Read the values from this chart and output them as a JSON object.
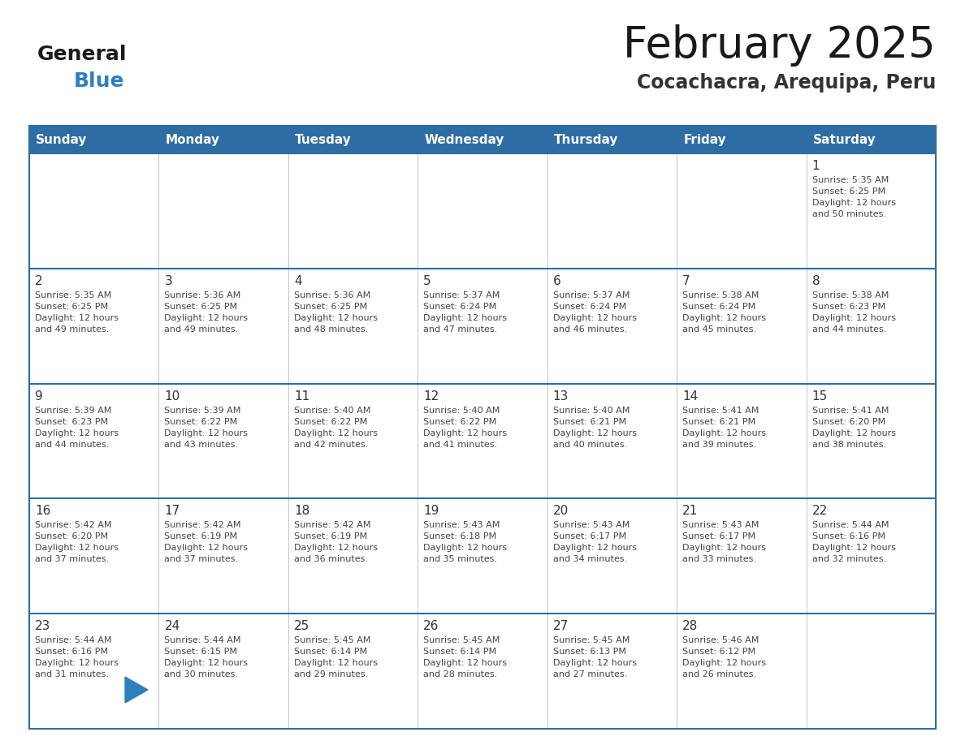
{
  "title": "February 2025",
  "subtitle": "Cocachacra, Arequipa, Peru",
  "days_of_week": [
    "Sunday",
    "Monday",
    "Tuesday",
    "Wednesday",
    "Thursday",
    "Friday",
    "Saturday"
  ],
  "header_bg_color": "#2E6DA4",
  "header_text_color": "#FFFFFF",
  "border_color": "#2E6DA4",
  "day_number_color": "#333333",
  "cell_text_color": "#444444",
  "title_color": "#1a1a1a",
  "subtitle_color": "#333333",
  "logo_general_color": "#1a1a1a",
  "logo_blue_color": "#2E7FBF",
  "logo_triangle_color": "#2E7FBF",
  "weeks": [
    [
      {
        "day": null,
        "info": null
      },
      {
        "day": null,
        "info": null
      },
      {
        "day": null,
        "info": null
      },
      {
        "day": null,
        "info": null
      },
      {
        "day": null,
        "info": null
      },
      {
        "day": null,
        "info": null
      },
      {
        "day": 1,
        "info": "Sunrise: 5:35 AM\nSunset: 6:25 PM\nDaylight: 12 hours\nand 50 minutes."
      }
    ],
    [
      {
        "day": 2,
        "info": "Sunrise: 5:35 AM\nSunset: 6:25 PM\nDaylight: 12 hours\nand 49 minutes."
      },
      {
        "day": 3,
        "info": "Sunrise: 5:36 AM\nSunset: 6:25 PM\nDaylight: 12 hours\nand 49 minutes."
      },
      {
        "day": 4,
        "info": "Sunrise: 5:36 AM\nSunset: 6:25 PM\nDaylight: 12 hours\nand 48 minutes."
      },
      {
        "day": 5,
        "info": "Sunrise: 5:37 AM\nSunset: 6:24 PM\nDaylight: 12 hours\nand 47 minutes."
      },
      {
        "day": 6,
        "info": "Sunrise: 5:37 AM\nSunset: 6:24 PM\nDaylight: 12 hours\nand 46 minutes."
      },
      {
        "day": 7,
        "info": "Sunrise: 5:38 AM\nSunset: 6:24 PM\nDaylight: 12 hours\nand 45 minutes."
      },
      {
        "day": 8,
        "info": "Sunrise: 5:38 AM\nSunset: 6:23 PM\nDaylight: 12 hours\nand 44 minutes."
      }
    ],
    [
      {
        "day": 9,
        "info": "Sunrise: 5:39 AM\nSunset: 6:23 PM\nDaylight: 12 hours\nand 44 minutes."
      },
      {
        "day": 10,
        "info": "Sunrise: 5:39 AM\nSunset: 6:22 PM\nDaylight: 12 hours\nand 43 minutes."
      },
      {
        "day": 11,
        "info": "Sunrise: 5:40 AM\nSunset: 6:22 PM\nDaylight: 12 hours\nand 42 minutes."
      },
      {
        "day": 12,
        "info": "Sunrise: 5:40 AM\nSunset: 6:22 PM\nDaylight: 12 hours\nand 41 minutes."
      },
      {
        "day": 13,
        "info": "Sunrise: 5:40 AM\nSunset: 6:21 PM\nDaylight: 12 hours\nand 40 minutes."
      },
      {
        "day": 14,
        "info": "Sunrise: 5:41 AM\nSunset: 6:21 PM\nDaylight: 12 hours\nand 39 minutes."
      },
      {
        "day": 15,
        "info": "Sunrise: 5:41 AM\nSunset: 6:20 PM\nDaylight: 12 hours\nand 38 minutes."
      }
    ],
    [
      {
        "day": 16,
        "info": "Sunrise: 5:42 AM\nSunset: 6:20 PM\nDaylight: 12 hours\nand 37 minutes."
      },
      {
        "day": 17,
        "info": "Sunrise: 5:42 AM\nSunset: 6:19 PM\nDaylight: 12 hours\nand 37 minutes."
      },
      {
        "day": 18,
        "info": "Sunrise: 5:42 AM\nSunset: 6:19 PM\nDaylight: 12 hours\nand 36 minutes."
      },
      {
        "day": 19,
        "info": "Sunrise: 5:43 AM\nSunset: 6:18 PM\nDaylight: 12 hours\nand 35 minutes."
      },
      {
        "day": 20,
        "info": "Sunrise: 5:43 AM\nSunset: 6:17 PM\nDaylight: 12 hours\nand 34 minutes."
      },
      {
        "day": 21,
        "info": "Sunrise: 5:43 AM\nSunset: 6:17 PM\nDaylight: 12 hours\nand 33 minutes."
      },
      {
        "day": 22,
        "info": "Sunrise: 5:44 AM\nSunset: 6:16 PM\nDaylight: 12 hours\nand 32 minutes."
      }
    ],
    [
      {
        "day": 23,
        "info": "Sunrise: 5:44 AM\nSunset: 6:16 PM\nDaylight: 12 hours\nand 31 minutes."
      },
      {
        "day": 24,
        "info": "Sunrise: 5:44 AM\nSunset: 6:15 PM\nDaylight: 12 hours\nand 30 minutes."
      },
      {
        "day": 25,
        "info": "Sunrise: 5:45 AM\nSunset: 6:14 PM\nDaylight: 12 hours\nand 29 minutes."
      },
      {
        "day": 26,
        "info": "Sunrise: 5:45 AM\nSunset: 6:14 PM\nDaylight: 12 hours\nand 28 minutes."
      },
      {
        "day": 27,
        "info": "Sunrise: 5:45 AM\nSunset: 6:13 PM\nDaylight: 12 hours\nand 27 minutes."
      },
      {
        "day": 28,
        "info": "Sunrise: 5:46 AM\nSunset: 6:12 PM\nDaylight: 12 hours\nand 26 minutes."
      },
      {
        "day": null,
        "info": null
      }
    ]
  ]
}
